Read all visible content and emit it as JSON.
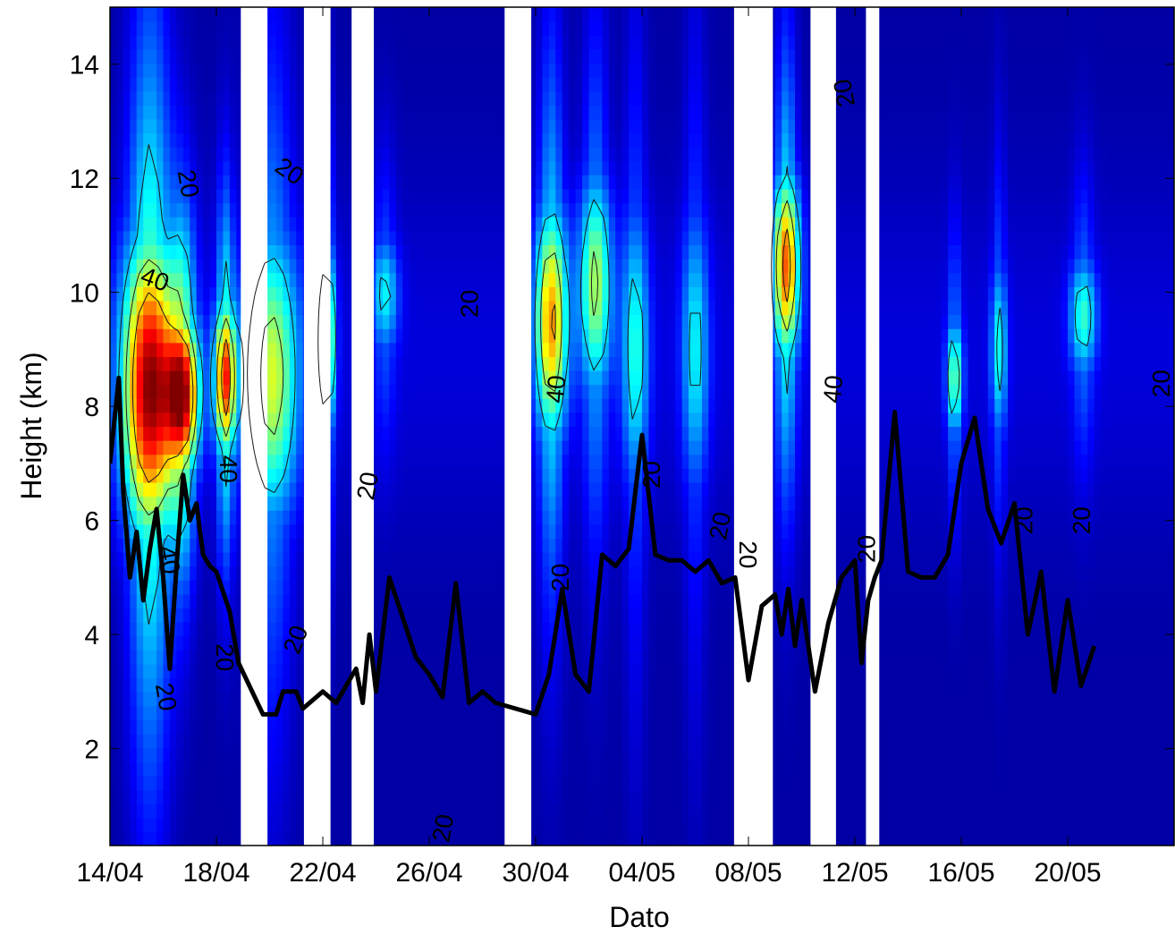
{
  "chart_data": {
    "type": "heatmap",
    "title": "",
    "xlabel": "Dato",
    "ylabel": "Height (km)",
    "ylim": [
      0.3,
      15
    ],
    "x_domain": [
      "2008-04-14",
      "2008-05-24"
    ],
    "x_ticks": [
      {
        "date": "2008-04-14",
        "label": "14/04"
      },
      {
        "date": "2008-04-18",
        "label": "18/04"
      },
      {
        "date": "2008-04-22",
        "label": "22/04"
      },
      {
        "date": "2008-04-26",
        "label": "26/04"
      },
      {
        "date": "2008-04-30",
        "label": "30/04"
      },
      {
        "date": "2008-05-04",
        "label": "04/05"
      },
      {
        "date": "2008-05-08",
        "label": "08/05"
      },
      {
        "date": "2008-05-12",
        "label": "12/05"
      },
      {
        "date": "2008-05-16",
        "label": "16/05"
      },
      {
        "date": "2008-05-20",
        "label": "20/05"
      }
    ],
    "y_ticks": [
      2,
      4,
      6,
      8,
      10,
      12,
      14
    ],
    "colormap": "jet",
    "color_low": "#00008f",
    "color_high": "#800000",
    "contour_levels": [
      20,
      30,
      40
    ],
    "missing_data_gaps": [
      [
        "2008-04-18 22:00",
        "2008-04-19 22:00"
      ],
      [
        "2008-04-21 07:00",
        "2008-04-22 07:00"
      ],
      [
        "2008-04-23 02:00",
        "2008-04-23 22:00"
      ],
      [
        "2008-04-28 20:00",
        "2008-04-29 20:00"
      ],
      [
        "2008-05-07 11:00",
        "2008-05-08 22:00"
      ],
      [
        "2008-05-10 08:00",
        "2008-05-11 07:00"
      ],
      [
        "2008-05-12 10:00",
        "2008-05-12 22:00"
      ]
    ],
    "intensity_features": [
      {
        "center": "2008-04-15 12:00",
        "height_km": 8.3,
        "peak": 55,
        "width_days": 1.0,
        "depth_km": 2.6
      },
      {
        "center": "2008-04-16 18:00",
        "height_km": 8.2,
        "peak": 48,
        "width_days": 0.6,
        "depth_km": 1.3
      },
      {
        "center": "2008-04-18 08:00",
        "height_km": 8.5,
        "peak": 46,
        "width_days": 0.4,
        "depth_km": 1.3
      },
      {
        "center": "2008-04-20 02:00",
        "height_km": 8.5,
        "peak": 32,
        "width_days": 1.0,
        "depth_km": 2.5
      },
      {
        "center": "2008-04-22 04:00",
        "height_km": 9.2,
        "peak": 33,
        "width_days": 0.3,
        "depth_km": 1.6
      },
      {
        "center": "2008-04-24 08:00",
        "height_km": 10.0,
        "peak": 20,
        "width_days": 0.5,
        "depth_km": 1.0
      },
      {
        "center": "2008-04-30 14:00",
        "height_km": 9.5,
        "peak": 40,
        "width_days": 0.6,
        "depth_km": 2.0
      },
      {
        "center": "2008-05-02 06:00",
        "height_km": 10.2,
        "peak": 30,
        "width_days": 0.6,
        "depth_km": 1.9
      },
      {
        "center": "2008-05-03 18:00",
        "height_km": 9.0,
        "peak": 22,
        "width_days": 0.5,
        "depth_km": 2.5
      },
      {
        "center": "2008-05-06 00:00",
        "height_km": 9.0,
        "peak": 20,
        "width_days": 0.5,
        "depth_km": 2.5
      },
      {
        "center": "2008-05-09 10:00",
        "height_km": 10.5,
        "peak": 44,
        "width_days": 0.5,
        "depth_km": 1.6
      },
      {
        "center": "2008-05-15 18:00",
        "height_km": 8.5,
        "peak": 27,
        "width_days": 0.3,
        "depth_km": 1.0
      },
      {
        "center": "2008-05-17 10:00",
        "height_km": 9.0,
        "peak": 21,
        "width_days": 0.3,
        "depth_km": 1.5
      },
      {
        "center": "2008-05-20 14:00",
        "height_km": 9.6,
        "peak": 23,
        "width_days": 0.5,
        "depth_km": 1.0
      }
    ],
    "contour_labels": [
      {
        "text": "20",
        "date": "2008-04-16 21:00",
        "height_km": 11.9,
        "angle": 80
      },
      {
        "text": "40",
        "date": "2008-04-15 16:00",
        "height_km": 10.2,
        "angle": 20
      },
      {
        "text": "40",
        "date": "2008-04-18 09:00",
        "height_km": 6.9,
        "angle": 90
      },
      {
        "text": "40",
        "date": "2008-04-16 04:00",
        "height_km": 5.3,
        "angle": 80
      },
      {
        "text": "20",
        "date": "2008-04-18 06:00",
        "height_km": 3.6,
        "angle": 90
      },
      {
        "text": "20",
        "date": "2008-04-16 01:00",
        "height_km": 2.9,
        "angle": 80
      },
      {
        "text": "20",
        "date": "2008-04-20 17:00",
        "height_km": 12.1,
        "angle": 35
      },
      {
        "text": "20",
        "date": "2008-04-21 01:00",
        "height_km": 3.9,
        "angle": -70
      },
      {
        "text": "20",
        "date": "2008-04-23 18:00",
        "height_km": 6.6,
        "angle": -80
      },
      {
        "text": "20",
        "date": "2008-04-27 14:00",
        "height_km": 9.8,
        "angle": -90
      },
      {
        "text": "20",
        "date": "2008-04-26 14:00",
        "height_km": 0.6,
        "angle": -80
      },
      {
        "text": "40",
        "date": "2008-04-30 20:00",
        "height_km": 8.3,
        "angle": -85
      },
      {
        "text": "20",
        "date": "2008-05-01 00:00",
        "height_km": 5.0,
        "angle": -90
      },
      {
        "text": "20",
        "date": "2008-05-04 10:00",
        "height_km": 6.8,
        "angle": -90
      },
      {
        "text": "20",
        "date": "2008-05-07 00:00",
        "height_km": 5.9,
        "angle": -80
      },
      {
        "text": "20",
        "date": "2008-05-07 22:00",
        "height_km": 5.4,
        "angle": 90
      },
      {
        "text": "20",
        "date": "2008-05-11 16:00",
        "height_km": 13.5,
        "angle": -100
      },
      {
        "text": "40",
        "date": "2008-05-11 06:00",
        "height_km": 8.3,
        "angle": -85
      },
      {
        "text": "20",
        "date": "2008-05-12 12:00",
        "height_km": 5.5,
        "angle": -90
      },
      {
        "text": "20",
        "date": "2008-05-18 10:00",
        "height_km": 6.0,
        "angle": -90
      },
      {
        "text": "20",
        "date": "2008-05-20 14:00",
        "height_km": 6.0,
        "angle": -90
      },
      {
        "text": "20",
        "date": "2008-05-23 14:00",
        "height_km": 8.4,
        "angle": -90
      }
    ],
    "series": [
      {
        "color": "#000000",
        "style": "line",
        "x": [
          "2008-04-14 00:00",
          "2008-04-14 08:00",
          "2008-04-14 12:00",
          "2008-04-14 18:00",
          "2008-04-15 00:00",
          "2008-04-15 06:00",
          "2008-04-15 12:00",
          "2008-04-15 18:00",
          "2008-04-16 00:00",
          "2008-04-16 06:00",
          "2008-04-16 12:00",
          "2008-04-16 18:00",
          "2008-04-17 00:00",
          "2008-04-17 06:00",
          "2008-04-17 12:00",
          "2008-04-17 18:00",
          "2008-04-18 00:00",
          "2008-04-18 12:00",
          "2008-04-18 20:00",
          "2008-04-19 18:00",
          "2008-04-20 06:00",
          "2008-04-20 12:00",
          "2008-04-21 00:00",
          "2008-04-21 06:00",
          "2008-04-22 00:00",
          "2008-04-22 12:00",
          "2008-04-23 06:00",
          "2008-04-23 12:00",
          "2008-04-23 18:00",
          "2008-04-24 00:00",
          "2008-04-24 12:00",
          "2008-04-25 00:00",
          "2008-04-25 12:00",
          "2008-04-26 00:00",
          "2008-04-26 12:00",
          "2008-04-27 00:00",
          "2008-04-27 12:00",
          "2008-04-28 00:00",
          "2008-04-28 12:00",
          "2008-04-30 00:00",
          "2008-04-30 12:00",
          "2008-05-01 00:00",
          "2008-05-01 12:00",
          "2008-05-02 00:00",
          "2008-05-02 12:00",
          "2008-05-03 00:00",
          "2008-05-03 12:00",
          "2008-05-04 00:00",
          "2008-05-04 12:00",
          "2008-05-05 00:00",
          "2008-05-05 12:00",
          "2008-05-06 00:00",
          "2008-05-06 12:00",
          "2008-05-07 00:00",
          "2008-05-07 12:00",
          "2008-05-08 00:00",
          "2008-05-08 12:00",
          "2008-05-09 00:00",
          "2008-05-09 06:00",
          "2008-05-09 12:00",
          "2008-05-09 18:00",
          "2008-05-10 00:00",
          "2008-05-10 12:00",
          "2008-05-11 00:00",
          "2008-05-11 12:00",
          "2008-05-12 00:00",
          "2008-05-12 06:00",
          "2008-05-12 12:00",
          "2008-05-12 18:00",
          "2008-05-13 00:00",
          "2008-05-13 12:00",
          "2008-05-14 00:00",
          "2008-05-14 12:00",
          "2008-05-15 00:00",
          "2008-05-15 12:00",
          "2008-05-16 00:00",
          "2008-05-16 12:00",
          "2008-05-17 00:00",
          "2008-05-17 12:00",
          "2008-05-18 00:00",
          "2008-05-18 12:00",
          "2008-05-19 00:00",
          "2008-05-19 12:00",
          "2008-05-20 00:00",
          "2008-05-20 12:00",
          "2008-05-21 00:00"
        ],
        "values": [
          7.0,
          8.5,
          6.5,
          5.0,
          5.8,
          4.6,
          5.5,
          6.2,
          5.0,
          3.4,
          5.2,
          6.8,
          6.0,
          6.3,
          5.4,
          5.2,
          5.1,
          4.4,
          3.5,
          2.6,
          2.6,
          3.0,
          3.0,
          2.7,
          3.0,
          2.8,
          3.4,
          2.8,
          4.0,
          3.0,
          5.0,
          4.3,
          3.6,
          3.3,
          2.9,
          4.9,
          2.8,
          3.0,
          2.8,
          2.6,
          3.3,
          4.8,
          3.3,
          3.0,
          5.4,
          5.2,
          5.5,
          7.5,
          5.4,
          5.3,
          5.3,
          5.1,
          5.3,
          4.9,
          5.0,
          3.2,
          4.5,
          4.7,
          4.0,
          4.8,
          3.8,
          4.6,
          3.0,
          4.2,
          5.0,
          5.3,
          3.5,
          4.6,
          5.0,
          5.3,
          7.9,
          5.1,
          5.0,
          5.0,
          5.4,
          7.0,
          7.8,
          6.2,
          5.6,
          6.3,
          4.0,
          5.1,
          3.0,
          4.6,
          3.1,
          3.8
        ]
      }
    ],
    "grid": false,
    "legend": "none"
  }
}
